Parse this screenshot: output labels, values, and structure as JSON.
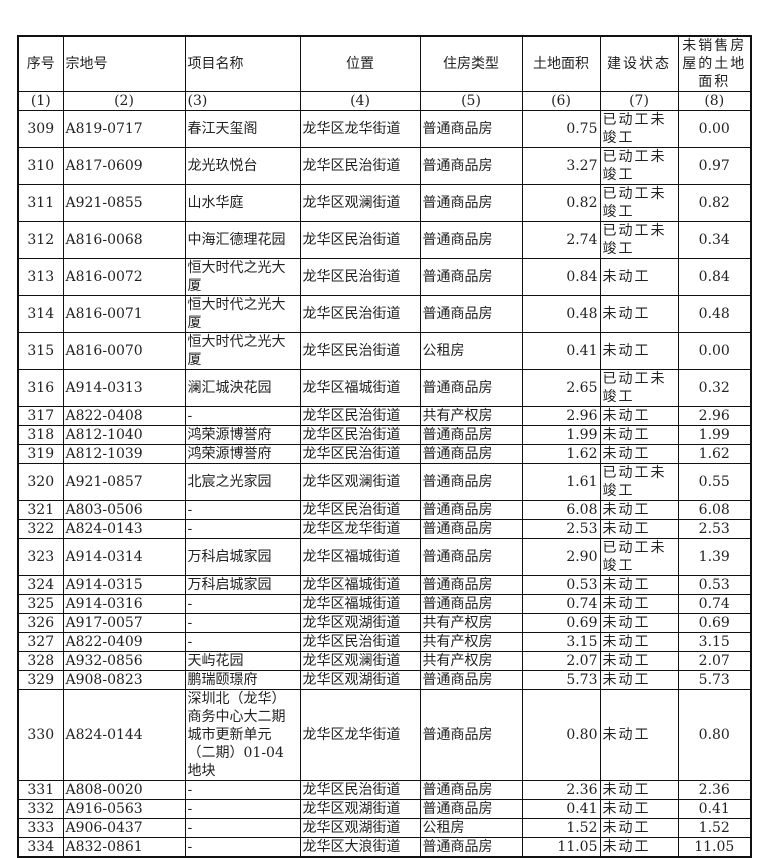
{
  "headers": [
    "序号",
    "宗地号",
    "项目名称",
    "位置",
    "住房类型",
    "土地面积",
    "建设状态",
    "未销售房屋的土地面积"
  ],
  "column_index": [
    "(1)",
    "(2)",
    "(3)",
    "(4)",
    "(5)",
    "(6)",
    "(7)",
    "(8)"
  ],
  "rows": [
    [
      "309",
      "A819-0717",
      "春江天玺阁",
      "龙华区龙华街道",
      "普通商品房",
      "0.75",
      "已动工未竣工",
      "0.00"
    ],
    [
      "310",
      "A817-0609",
      "龙光玖悦台",
      "龙华区民治街道",
      "普通商品房",
      "3.27",
      "已动工未竣工",
      "0.97"
    ],
    [
      "311",
      "A921-0855",
      "山水华庭",
      "龙华区观澜街道",
      "普通商品房",
      "0.82",
      "已动工未竣工",
      "0.82"
    ],
    [
      "312",
      "A816-0068",
      "中海汇德理花园",
      "龙华区民治街道",
      "普通商品房",
      "2.74",
      "已动工未竣工",
      "0.34"
    ],
    [
      "313",
      "A816-0072",
      "恒大时代之光大厦",
      "龙华区民治街道",
      "普通商品房",
      "0.84",
      "未动工",
      "0.84"
    ],
    [
      "314",
      "A816-0071",
      "恒大时代之光大厦",
      "龙华区民治街道",
      "普通商品房",
      "0.48",
      "未动工",
      "0.48"
    ],
    [
      "315",
      "A816-0070",
      "恒大时代之光大厦",
      "龙华区民治街道",
      "公租房",
      "0.41",
      "未动工",
      "0.00"
    ],
    [
      "316",
      "A914-0313",
      "澜汇城泱花园",
      "龙华区福城街道",
      "普通商品房",
      "2.65",
      "已动工未竣工",
      "0.32"
    ],
    [
      "317",
      "A822-0408",
      "-",
      "龙华区民治街道",
      "共有产权房",
      "2.96",
      "未动工",
      "2.96"
    ],
    [
      "318",
      "A812-1040",
      "鸿荣源博誉府",
      "龙华区民治街道",
      "普通商品房",
      "1.99",
      "未动工",
      "1.99"
    ],
    [
      "319",
      "A812-1039",
      "鸿荣源博誉府",
      "龙华区民治街道",
      "普通商品房",
      "1.62",
      "未动工",
      "1.62"
    ],
    [
      "320",
      "A921-0857",
      "北宸之光家园",
      "龙华区观澜街道",
      "普通商品房",
      "1.61",
      "已动工未竣工",
      "0.55"
    ],
    [
      "321",
      "A803-0506",
      "-",
      "龙华区民治街道",
      "普通商品房",
      "6.08",
      "未动工",
      "6.08"
    ],
    [
      "322",
      "A824-0143",
      "-",
      "龙华区龙华街道",
      "普通商品房",
      "2.53",
      "未动工",
      "2.53"
    ],
    [
      "323",
      "A914-0314",
      "万科启城家园",
      "龙华区福城街道",
      "普通商品房",
      "2.90",
      "已动工未竣工",
      "1.39"
    ],
    [
      "324",
      "A914-0315",
      "万科启城家园",
      "龙华区福城街道",
      "普通商品房",
      "0.53",
      "未动工",
      "0.53"
    ],
    [
      "325",
      "A914-0316",
      "-",
      "龙华区福城街道",
      "普通商品房",
      "0.74",
      "未动工",
      "0.74"
    ],
    [
      "326",
      "A917-0057",
      "-",
      "龙华区观湖街道",
      "共有产权房",
      "0.69",
      "未动工",
      "0.69"
    ],
    [
      "327",
      "A822-0409",
      "-",
      "龙华区民治街道",
      "共有产权房",
      "3.15",
      "未动工",
      "3.15"
    ],
    [
      "328",
      "A932-0856",
      "天屿花园",
      "龙华区观澜街道",
      "共有产权房",
      "2.07",
      "未动工",
      "2.07"
    ],
    [
      "329",
      "A908-0823",
      "鹏瑞颐璟府",
      "龙华区观湖街道",
      "普通商品房",
      "5.73",
      "未动工",
      "5.73"
    ],
    [
      "330",
      "A824-0144",
      "深圳北（龙华）商务中心大二期城市更新单元（二期）01-04地块",
      "龙华区龙华街道",
      "普通商品房",
      "0.80",
      "未动工",
      "0.80"
    ],
    [
      "331",
      "A808-0020",
      "-",
      "龙华区民治街道",
      "普通商品房",
      "2.36",
      "未动工",
      "2.36"
    ],
    [
      "332",
      "A916-0563",
      "-",
      "龙华区观湖街道",
      "普通商品房",
      "0.41",
      "未动工",
      "0.41"
    ],
    [
      "333",
      "A906-0437",
      "-",
      "龙华区观湖街道",
      "公租房",
      "1.52",
      "未动工",
      "1.52"
    ],
    [
      "334",
      "A832-0861",
      "-",
      "龙华区大浪街道",
      "普通商品房",
      "11.05",
      "未动工",
      "11.05"
    ]
  ]
}
